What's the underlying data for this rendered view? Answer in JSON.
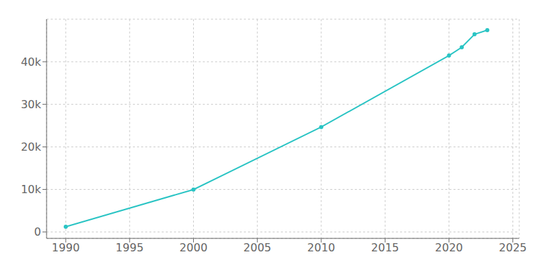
{
  "chart_data": {
    "type": "line",
    "x": [
      1990,
      2000,
      2010,
      2020,
      2021,
      2022,
      2023
    ],
    "values": [
      1238,
      9973,
      24661,
      41452,
      43392,
      46452,
      47415
    ],
    "color": "#2ac4c4",
    "marker": "circle",
    "xlim": [
      1988.5,
      2025.5
    ],
    "ylim": [
      -1500,
      50000
    ],
    "xticks": [
      1990,
      1995,
      2000,
      2005,
      2010,
      2015,
      2020,
      2025
    ],
    "yticks": [
      0,
      {
        "value": 10000,
        "label": "10k"
      },
      {
        "value": 20000,
        "label": "20k"
      },
      {
        "value": 30000,
        "label": "30k"
      },
      {
        "value": 40000,
        "label": "40k"
      }
    ],
    "grid": true
  }
}
